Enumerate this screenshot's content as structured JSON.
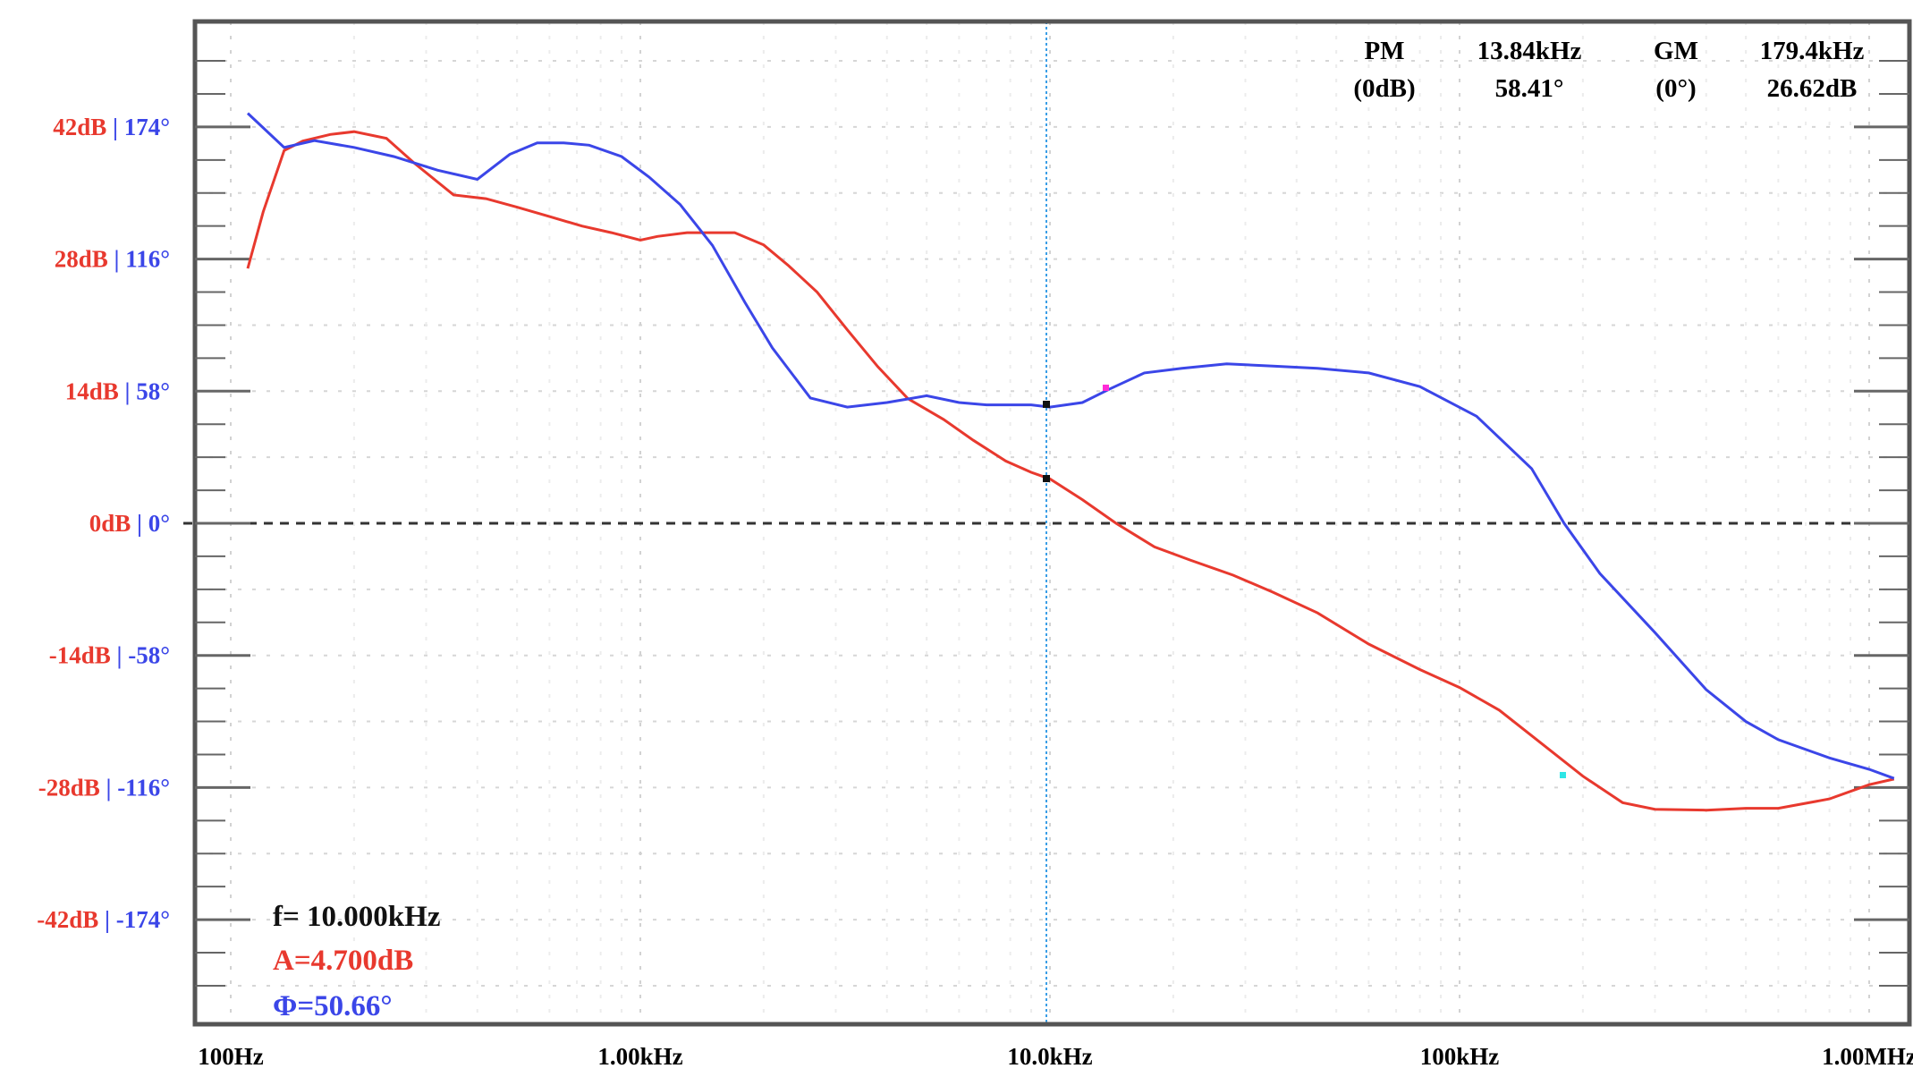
{
  "chart_data": {
    "type": "line",
    "x_scale": "log",
    "x_unit": "Hz",
    "xlim": [
      100,
      1200000
    ],
    "ylim_gain_db": [
      -56,
      56
    ],
    "ylim_phase_deg": [
      -232,
      232
    ],
    "gain_ticks": [
      "42dB",
      "28dB",
      "14dB",
      "0dB",
      "-14dB",
      "-28dB",
      "-42dB"
    ],
    "gain_tick_values": [
      42,
      28,
      14,
      0,
      -14,
      -28,
      -42
    ],
    "phase_ticks": [
      "174°",
      "116°",
      "58°",
      "0°",
      "-58°",
      "-116°",
      "-174°"
    ],
    "phase_tick_values": [
      174,
      116,
      58,
      0,
      -58,
      -116,
      -174
    ],
    "x_ticks": [
      "100Hz",
      "1.00kHz",
      "10.0kHz",
      "100kHz",
      "1.00MHz"
    ],
    "x_tick_values": [
      100,
      1000,
      10000,
      100000,
      1000000
    ],
    "grid": true,
    "series": [
      {
        "color": "#e8392e",
        "axis": "gain",
        "x": [
          110,
          120,
          135,
          150,
          175,
          200,
          240,
          280,
          350,
          420,
          500,
          600,
          720,
          850,
          1000,
          1100,
          1300,
          1500,
          1700,
          2000,
          2300,
          2700,
          3200,
          3800,
          4500,
          5500,
          6500,
          7800,
          9000,
          10000,
          12000,
          14500,
          18000,
          22000,
          28000,
          35000,
          45000,
          60000,
          80000,
          100000,
          125000,
          150000,
          200000,
          250000,
          300000,
          400000,
          500000,
          600000,
          800000,
          1000000,
          1150000
        ],
        "values": [
          27,
          33,
          39.5,
          40.5,
          41.2,
          41.5,
          40.8,
          38.2,
          34.8,
          34.4,
          33.5,
          32.5,
          31.5,
          30.8,
          30,
          30.4,
          30.8,
          30.8,
          30.8,
          29.5,
          27.3,
          24.5,
          20.5,
          16.6,
          13.2,
          11,
          8.8,
          6.6,
          5.4,
          4.7,
          2.5,
          0,
          -2.5,
          -3.9,
          -5.5,
          -7.3,
          -9.5,
          -12.8,
          -15.5,
          -17.4,
          -19.8,
          -22.5,
          -26.8,
          -29.6,
          -30.3,
          -30.4,
          -30.2,
          -30.2,
          -29.2,
          -27.7,
          -27.1
        ]
      },
      {
        "color": "#3b46e8",
        "axis": "phase",
        "x": [
          110,
          135,
          160,
          200,
          250,
          320,
          400,
          480,
          560,
          650,
          750,
          900,
          1050,
          1250,
          1500,
          1800,
          2100,
          2600,
          3200,
          4000,
          5000,
          6000,
          7000,
          8000,
          9000,
          10000,
          12000,
          14000,
          17000,
          21000,
          27000,
          35000,
          45000,
          60000,
          80000,
          110000,
          150000,
          180000,
          220000,
          300000,
          400000,
          500000,
          600000,
          800000,
          1000000,
          1150000
        ],
        "values": [
          180,
          165,
          168,
          165,
          161,
          155,
          151,
          162,
          167,
          167,
          166,
          161,
          152,
          140,
          122,
          97,
          77,
          55,
          51,
          53,
          56,
          53,
          52,
          52,
          52,
          51,
          53,
          59,
          66,
          68,
          70,
          69,
          68,
          66,
          60,
          47,
          24,
          0,
          -22,
          -48,
          -73,
          -87,
          -95,
          -103,
          -108,
          -112
        ]
      }
    ],
    "pm": {
      "label": "PM",
      "sub": "(0dB)",
      "freq": "13.84kHz",
      "value": "58.41°"
    },
    "gm": {
      "label": "GM",
      "sub": "(0°)",
      "freq": "179.4kHz",
      "value": "26.62dB"
    },
    "readout": {
      "f": "f= 10.000kHz",
      "a": "A=4.700dB",
      "phi": "Φ=50.66°"
    }
  }
}
